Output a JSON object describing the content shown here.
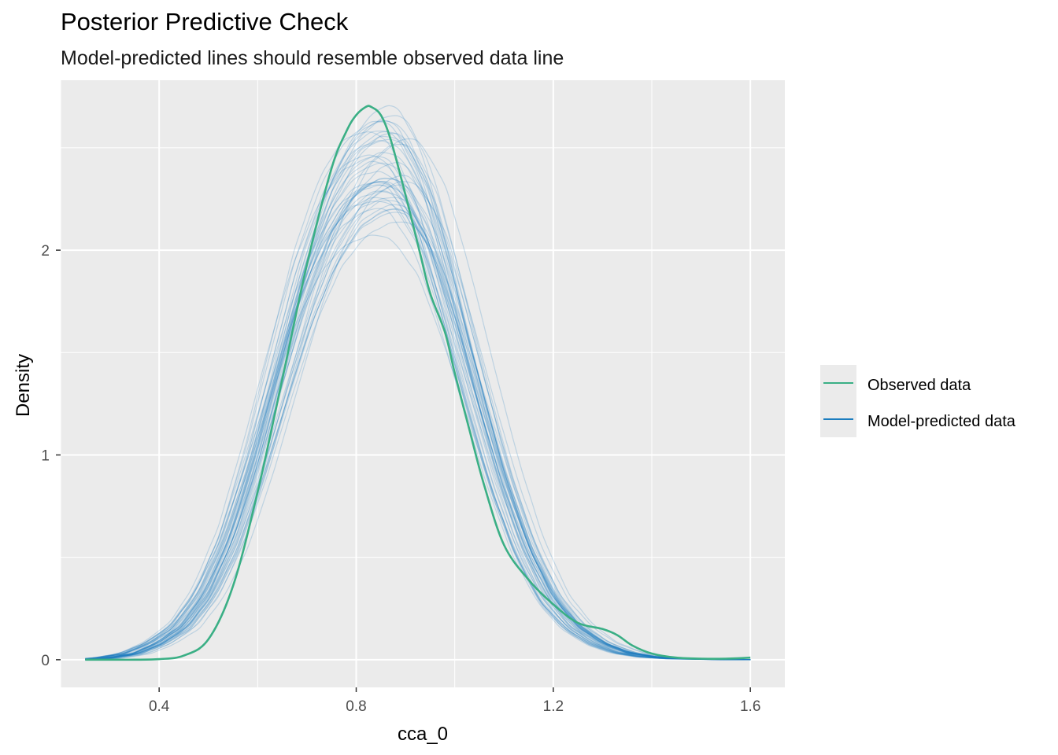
{
  "title": "Posterior Predictive Check",
  "subtitle": "Model-predicted lines should resemble observed data line",
  "chart_data": {
    "type": "line",
    "xlabel": "cca_0",
    "ylabel": "Density",
    "xlim": [
      0.2,
      1.67
    ],
    "ylim": [
      -0.135,
      2.83
    ],
    "x_ticks": [
      "0.4",
      "0.8",
      "1.2",
      "1.6"
    ],
    "y_ticks": [
      "0",
      "1",
      "2"
    ],
    "grid": true,
    "legend_position": "right",
    "legend": [
      "Observed data",
      "Model-predicted data"
    ],
    "colors": {
      "observed": "#3aaf85",
      "predicted": "#1b7dbf",
      "panel": "#ebebeb",
      "grid": "#ffffff"
    },
    "series": [
      {
        "name": "Observed data",
        "x": [
          0.25,
          0.3,
          0.35,
          0.4,
          0.45,
          0.5,
          0.55,
          0.6,
          0.65,
          0.7,
          0.75,
          0.78,
          0.8,
          0.82,
          0.83,
          0.85,
          0.87,
          0.9,
          0.93,
          0.95,
          0.98,
          1.0,
          1.03,
          1.06,
          1.1,
          1.15,
          1.2,
          1.25,
          1.3,
          1.33,
          1.36,
          1.4,
          1.45,
          1.5,
          1.55,
          1.6
        ],
        "y": [
          0.0,
          0.0,
          0.0,
          0.003,
          0.02,
          0.1,
          0.36,
          0.82,
          1.37,
          1.93,
          2.4,
          2.58,
          2.66,
          2.7,
          2.7,
          2.66,
          2.54,
          2.27,
          1.98,
          1.79,
          1.6,
          1.4,
          1.12,
          0.85,
          0.56,
          0.39,
          0.27,
          0.18,
          0.15,
          0.12,
          0.07,
          0.03,
          0.01,
          0.005,
          0.005,
          0.01
        ]
      },
      {
        "name": "Model-predicted data",
        "x": [
          0.25,
          0.3,
          0.35,
          0.4,
          0.45,
          0.5,
          0.55,
          0.6,
          0.65,
          0.7,
          0.75,
          0.8,
          0.85,
          0.88,
          0.9,
          0.95,
          1.0,
          1.05,
          1.1,
          1.15,
          1.2,
          1.25,
          1.3,
          1.35,
          1.4,
          1.45,
          1.5,
          1.55,
          1.6
        ],
        "y": [
          0.0,
          0.01,
          0.03,
          0.08,
          0.16,
          0.32,
          0.58,
          0.95,
          1.38,
          1.8,
          2.12,
          2.32,
          2.4,
          2.4,
          2.37,
          2.15,
          1.75,
          1.3,
          0.88,
          0.54,
          0.3,
          0.16,
          0.08,
          0.035,
          0.015,
          0.006,
          0.003,
          0.001,
          0.0
        ]
      }
    ]
  }
}
